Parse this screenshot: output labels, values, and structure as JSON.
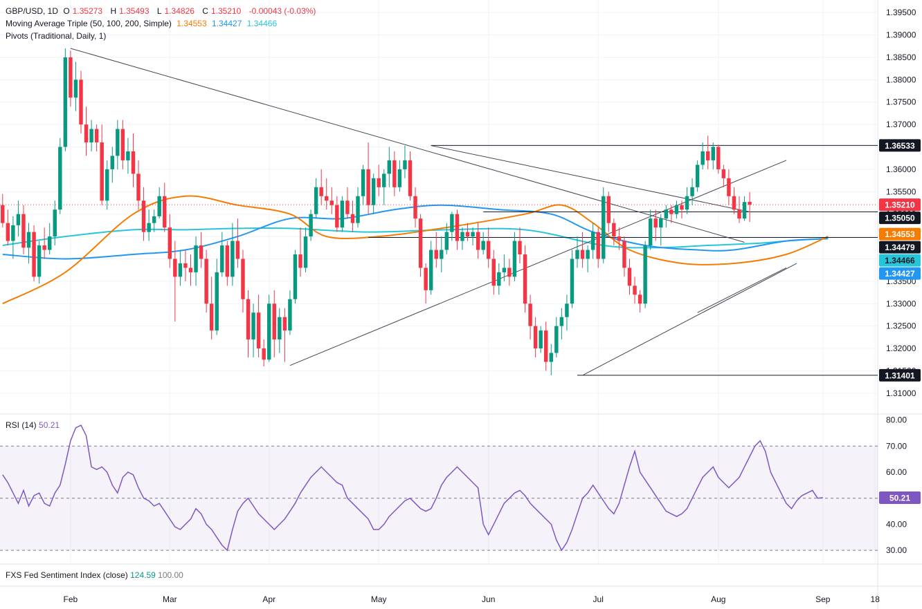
{
  "header": {
    "symbol": "GBP/USD, 1D",
    "o_label": "O",
    "o": "1.35273",
    "h_label": "H",
    "h": "1.35493",
    "l_label": "L",
    "l": "1.34826",
    "c_label": "C",
    "c": "1.35210",
    "change": "-0.00043 (-0.03%)",
    "ma_title": "Moving Average Triple (50, 100, 200, Simple)",
    "ma50": "1.34553",
    "ma100": "1.34427",
    "ma200": "1.34466",
    "pivots_title": "Pivots (Traditional, Daily, 1)"
  },
  "rsi_legend": {
    "name": "RSI (14)",
    "value": "50.21"
  },
  "fxs_legend": {
    "name": "FXS Fed Sentiment Index (close)",
    "value": "124.59",
    "value2": "100.00"
  },
  "colors": {
    "up": "#089981",
    "down": "#f23645",
    "ma50": "#f57c00",
    "ma100": "#2196f3",
    "ma200": "#26c6da",
    "rsi": "#7e57c2",
    "trend": "#434651",
    "level": "#131722"
  },
  "chart_data": {
    "type": "candlestick",
    "price_axis": {
      "range": [
        1.3055,
        1.3978
      ],
      "ticks": [
        "1.39500",
        "1.39000",
        "1.38500",
        "1.38000",
        "1.37500",
        "1.37000",
        "1.36500",
        "1.36000",
        "1.35500",
        "1.35000",
        "1.34500",
        "1.34000",
        "1.33500",
        "1.33000",
        "1.32500",
        "1.32000",
        "1.31500",
        "1.31000"
      ]
    },
    "rsi_axis": {
      "range": [
        25,
        82
      ],
      "ticks": [
        "80.00",
        "70.00",
        "60.00",
        "50.00",
        "40.00",
        "30.00"
      ],
      "band": [
        30,
        70
      ],
      "mid": 50
    },
    "time_axis": {
      "labels": [
        "Feb",
        "Mar",
        "Apr",
        "May",
        "Jun",
        "Jul",
        "Aug",
        "Sep",
        "18"
      ],
      "label_index": [
        13,
        32,
        51,
        72,
        93,
        114,
        137,
        157,
        167
      ],
      "n_slots": 168
    },
    "current_price": 1.3521,
    "badges": [
      {
        "text": "1.36533",
        "value": 1.36533,
        "kind": "level"
      },
      {
        "text": "1.35210",
        "value": 1.3521,
        "kind": "price"
      },
      {
        "text": "1.35050",
        "value": 1.3505,
        "kind": "level"
      },
      {
        "text": "1.34553",
        "value": 1.34553,
        "kind": "ma50"
      },
      {
        "text": "1.34479",
        "value": 1.34479,
        "kind": "level"
      },
      {
        "text": "1.34466",
        "value": 1.34466,
        "kind": "ma200"
      },
      {
        "text": "1.34427",
        "value": 1.34427,
        "kind": "ma100"
      },
      {
        "text": "1.31401",
        "value": 1.31401,
        "kind": "level"
      }
    ],
    "levels": [
      {
        "value": 1.36533,
        "from": 82,
        "to": 168
      },
      {
        "value": 1.3505,
        "from": 92,
        "to": 168
      },
      {
        "value": 1.34479,
        "from": 70,
        "to": 168
      },
      {
        "value": 1.31401,
        "from": 110,
        "to": 168
      }
    ],
    "trendlines": [
      {
        "x1": 13,
        "y1": 1.387,
        "x2": 142,
        "y2": 1.3437
      },
      {
        "x1": 82,
        "y1": 1.3653,
        "x2": 143,
        "y2": 1.3505
      },
      {
        "x1": 55,
        "y1": 1.3162,
        "x2": 150,
        "y2": 1.362
      },
      {
        "x1": 111,
        "y1": 1.314,
        "x2": 152,
        "y2": 1.339
      },
      {
        "x1": 133,
        "y1": 1.328,
        "x2": 150,
        "y2": 1.338
      }
    ],
    "ma50": [
      [
        0,
        1.33
      ],
      [
        12,
        1.337
      ],
      [
        25,
        1.35
      ],
      [
        35,
        1.354
      ],
      [
        45,
        1.352
      ],
      [
        55,
        1.35
      ],
      [
        62,
        1.345
      ],
      [
        72,
        1.345
      ],
      [
        85,
        1.347
      ],
      [
        100,
        1.35
      ],
      [
        107,
        1.352
      ],
      [
        113,
        1.348
      ],
      [
        120,
        1.342
      ],
      [
        130,
        1.339
      ],
      [
        140,
        1.339
      ],
      [
        150,
        1.341
      ],
      [
        158,
        1.345
      ]
    ],
    "ma100": [
      [
        0,
        1.341
      ],
      [
        12,
        1.34
      ],
      [
        25,
        1.341
      ],
      [
        35,
        1.342
      ],
      [
        45,
        1.345
      ],
      [
        55,
        1.349
      ],
      [
        65,
        1.349
      ],
      [
        75,
        1.351
      ],
      [
        84,
        1.352
      ],
      [
        95,
        1.351
      ],
      [
        105,
        1.35
      ],
      [
        113,
        1.346
      ],
      [
        123,
        1.343
      ],
      [
        133,
        1.342
      ],
      [
        140,
        1.342
      ],
      [
        150,
        1.344
      ],
      [
        158,
        1.3445
      ]
    ],
    "ma200": [
      [
        0,
        1.343
      ],
      [
        12,
        1.345
      ],
      [
        25,
        1.3465
      ],
      [
        35,
        1.3465
      ],
      [
        45,
        1.3468
      ],
      [
        55,
        1.3468
      ],
      [
        70,
        1.346
      ],
      [
        85,
        1.3465
      ],
      [
        100,
        1.3465
      ],
      [
        115,
        1.343
      ],
      [
        125,
        1.3425
      ],
      [
        135,
        1.343
      ],
      [
        145,
        1.3435
      ],
      [
        150,
        1.344
      ],
      [
        158,
        1.3446
      ]
    ],
    "rsi": [
      59,
      56,
      52,
      48,
      53,
      47,
      51,
      52,
      48,
      47,
      52,
      55,
      63,
      72,
      77,
      78,
      74,
      62,
      61,
      62,
      60,
      55,
      52,
      58,
      60,
      59,
      54,
      50,
      49,
      47,
      48,
      45,
      42,
      39,
      38,
      40,
      42,
      46,
      44,
      40,
      38,
      35,
      32,
      30,
      38,
      45,
      48,
      50,
      47,
      44,
      42,
      40,
      38,
      40,
      42,
      45,
      48,
      52,
      55,
      58,
      60,
      62,
      60,
      58,
      56,
      55,
      50,
      48,
      46,
      44,
      42,
      38,
      38,
      40,
      43,
      45,
      47,
      49,
      50,
      48,
      46,
      45,
      46,
      50,
      55,
      58,
      60,
      62,
      60,
      58,
      56,
      54,
      40,
      36,
      40,
      44,
      48,
      50,
      52,
      53,
      51,
      48,
      46,
      44,
      42,
      40,
      34,
      30,
      33,
      38,
      44,
      50,
      52,
      55,
      52,
      49,
      46,
      44,
      48,
      55,
      62,
      68,
      60,
      57,
      54,
      51,
      48,
      45,
      44,
      43,
      44,
      46,
      50,
      54,
      58,
      60,
      62,
      58,
      56,
      54,
      56,
      58,
      62,
      66,
      70,
      72,
      68,
      60,
      56,
      52,
      48,
      46,
      49,
      51,
      52,
      53,
      50,
      50.2
    ],
    "candles": [
      [
        1.352,
        1.3545,
        1.347,
        1.348
      ],
      [
        1.348,
        1.351,
        1.343,
        1.344
      ],
      [
        1.344,
        1.3495,
        1.34,
        1.3475
      ],
      [
        1.3475,
        1.353,
        1.345,
        1.35
      ],
      [
        1.35,
        1.352,
        1.341,
        1.3425
      ],
      [
        1.3425,
        1.348,
        1.339,
        1.346
      ],
      [
        1.346,
        1.3475,
        1.335,
        1.336
      ],
      [
        1.336,
        1.344,
        1.3345,
        1.343
      ],
      [
        1.343,
        1.347,
        1.34,
        1.342
      ],
      [
        1.342,
        1.348,
        1.341,
        1.345
      ],
      [
        1.345,
        1.353,
        1.343,
        1.351
      ],
      [
        1.351,
        1.367,
        1.35,
        1.365
      ],
      [
        1.365,
        1.387,
        1.364,
        1.385
      ],
      [
        1.385,
        1.3865,
        1.374,
        1.376
      ],
      [
        1.376,
        1.384,
        1.373,
        1.38
      ],
      [
        1.38,
        1.382,
        1.368,
        1.37
      ],
      [
        1.37,
        1.374,
        1.363,
        1.366
      ],
      [
        1.366,
        1.371,
        1.364,
        1.369
      ],
      [
        1.369,
        1.37,
        1.364,
        1.366
      ],
      [
        1.366,
        1.37,
        1.352,
        1.353
      ],
      [
        1.353,
        1.362,
        1.351,
        1.36
      ],
      [
        1.36,
        1.365,
        1.357,
        1.363
      ],
      [
        1.363,
        1.371,
        1.36,
        1.369
      ],
      [
        1.369,
        1.371,
        1.36,
        1.362
      ],
      [
        1.362,
        1.367,
        1.359,
        1.364
      ],
      [
        1.364,
        1.368,
        1.356,
        1.359
      ],
      [
        1.359,
        1.362,
        1.351,
        1.353
      ],
      [
        1.353,
        1.356,
        1.344,
        1.346
      ],
      [
        1.346,
        1.351,
        1.344,
        1.348
      ],
      [
        1.348,
        1.351,
        1.346,
        1.3495
      ],
      [
        1.3495,
        1.356,
        1.349,
        1.354
      ],
      [
        1.354,
        1.357,
        1.346,
        1.347
      ],
      [
        1.347,
        1.35,
        1.338,
        1.34
      ],
      [
        1.34,
        1.344,
        1.326,
        1.336
      ],
      [
        1.336,
        1.342,
        1.334,
        1.339
      ],
      [
        1.339,
        1.342,
        1.335,
        1.338
      ],
      [
        1.338,
        1.341,
        1.334,
        1.337
      ],
      [
        1.337,
        1.345,
        1.334,
        1.343
      ],
      [
        1.343,
        1.346,
        1.338,
        1.34
      ],
      [
        1.34,
        1.342,
        1.328,
        1.33
      ],
      [
        1.33,
        1.336,
        1.322,
        1.324
      ],
      [
        1.324,
        1.34,
        1.323,
        1.337
      ],
      [
        1.337,
        1.346,
        1.336,
        1.343
      ],
      [
        1.343,
        1.344,
        1.334,
        1.336
      ],
      [
        1.336,
        1.348,
        1.334,
        1.344
      ],
      [
        1.344,
        1.349,
        1.338,
        1.34
      ],
      [
        1.34,
        1.342,
        1.328,
        1.331
      ],
      [
        1.331,
        1.333,
        1.318,
        1.322
      ],
      [
        1.322,
        1.33,
        1.318,
        1.328
      ],
      [
        1.328,
        1.332,
        1.318,
        1.32
      ],
      [
        1.32,
        1.322,
        1.316,
        1.3175
      ],
      [
        1.3175,
        1.332,
        1.317,
        1.33
      ],
      [
        1.33,
        1.333,
        1.318,
        1.322
      ],
      [
        1.322,
        1.329,
        1.319,
        1.327
      ],
      [
        1.327,
        1.329,
        1.317,
        1.324
      ],
      [
        1.324,
        1.333,
        1.323,
        1.331
      ],
      [
        1.331,
        1.342,
        1.33,
        1.341
      ],
      [
        1.341,
        1.347,
        1.336,
        1.338
      ],
      [
        1.338,
        1.347,
        1.337,
        1.345
      ],
      [
        1.345,
        1.351,
        1.344,
        1.35
      ],
      [
        1.35,
        1.358,
        1.349,
        1.356
      ],
      [
        1.356,
        1.36,
        1.352,
        1.354
      ],
      [
        1.354,
        1.358,
        1.351,
        1.353
      ],
      [
        1.353,
        1.356,
        1.35,
        1.352
      ],
      [
        1.352,
        1.354,
        1.346,
        1.347
      ],
      [
        1.347,
        1.354,
        1.346,
        1.353
      ],
      [
        1.353,
        1.356,
        1.349,
        1.35
      ],
      [
        1.35,
        1.353,
        1.346,
        1.348
      ],
      [
        1.348,
        1.356,
        1.347,
        1.354
      ],
      [
        1.354,
        1.361,
        1.352,
        1.36
      ],
      [
        1.36,
        1.366,
        1.35,
        1.352
      ],
      [
        1.352,
        1.359,
        1.35,
        1.358
      ],
      [
        1.358,
        1.361,
        1.354,
        1.356
      ],
      [
        1.356,
        1.36,
        1.352,
        1.359
      ],
      [
        1.359,
        1.365,
        1.356,
        1.362
      ],
      [
        1.362,
        1.364,
        1.354,
        1.356
      ],
      [
        1.356,
        1.362,
        1.355,
        1.36
      ],
      [
        1.36,
        1.3653,
        1.358,
        1.362
      ],
      [
        1.362,
        1.364,
        1.353,
        1.354
      ],
      [
        1.354,
        1.356,
        1.347,
        1.349
      ],
      [
        1.349,
        1.35,
        1.336,
        1.338
      ],
      [
        1.338,
        1.339,
        1.33,
        1.333
      ],
      [
        1.333,
        1.344,
        1.332,
        1.342
      ],
      [
        1.342,
        1.346,
        1.338,
        1.34
      ],
      [
        1.34,
        1.345,
        1.337,
        1.342
      ],
      [
        1.342,
        1.348,
        1.341,
        1.346
      ],
      [
        1.346,
        1.3505,
        1.344,
        1.35
      ],
      [
        1.35,
        1.351,
        1.342,
        1.344
      ],
      [
        1.344,
        1.347,
        1.342,
        1.346
      ],
      [
        1.346,
        1.348,
        1.344,
        1.345
      ],
      [
        1.345,
        1.347,
        1.343,
        1.346
      ],
      [
        1.346,
        1.348,
        1.34,
        1.342
      ],
      [
        1.342,
        1.346,
        1.341,
        1.344
      ],
      [
        1.344,
        1.347,
        1.338,
        1.34
      ],
      [
        1.34,
        1.342,
        1.332,
        1.334
      ],
      [
        1.334,
        1.339,
        1.332,
        1.337
      ],
      [
        1.337,
        1.341,
        1.335,
        1.338
      ],
      [
        1.338,
        1.34,
        1.334,
        1.336
      ],
      [
        1.336,
        1.346,
        1.335,
        1.344
      ],
      [
        1.344,
        1.347,
        1.339,
        1.341
      ],
      [
        1.341,
        1.343,
        1.328,
        1.33
      ],
      [
        1.33,
        1.332,
        1.322,
        1.325
      ],
      [
        1.325,
        1.327,
        1.318,
        1.32
      ],
      [
        1.32,
        1.325,
        1.319,
        1.324
      ],
      [
        1.324,
        1.326,
        1.315,
        1.317
      ],
      [
        1.317,
        1.321,
        1.314,
        1.319
      ],
      [
        1.319,
        1.327,
        1.318,
        1.325
      ],
      [
        1.325,
        1.329,
        1.322,
        1.327
      ],
      [
        1.327,
        1.332,
        1.324,
        1.33
      ],
      [
        1.33,
        1.342,
        1.329,
        1.34
      ],
      [
        1.34,
        1.345,
        1.338,
        1.342
      ],
      [
        1.342,
        1.346,
        1.338,
        1.34
      ],
      [
        1.34,
        1.343,
        1.337,
        1.342
      ],
      [
        1.342,
        1.348,
        1.34,
        1.346
      ],
      [
        1.346,
        1.347,
        1.338,
        1.34
      ],
      [
        1.34,
        1.356,
        1.339,
        1.354
      ],
      [
        1.354,
        1.355,
        1.346,
        1.348
      ],
      [
        1.348,
        1.349,
        1.343,
        1.345
      ],
      [
        1.345,
        1.347,
        1.342,
        1.344
      ],
      [
        1.344,
        1.345,
        1.336,
        1.338
      ],
      [
        1.338,
        1.34,
        1.332,
        1.334
      ],
      [
        1.334,
        1.336,
        1.33,
        1.332
      ],
      [
        1.332,
        1.333,
        1.328,
        1.33
      ],
      [
        1.33,
        1.344,
        1.329,
        1.343
      ],
      [
        1.343,
        1.351,
        1.342,
        1.349
      ],
      [
        1.349,
        1.351,
        1.344,
        1.347
      ],
      [
        1.347,
        1.35,
        1.343,
        1.349
      ],
      [
        1.349,
        1.352,
        1.347,
        1.351
      ],
      [
        1.351,
        1.352,
        1.348,
        1.35
      ],
      [
        1.35,
        1.353,
        1.349,
        1.352
      ],
      [
        1.352,
        1.353,
        1.349,
        1.351
      ],
      [
        1.351,
        1.356,
        1.35,
        1.354
      ],
      [
        1.354,
        1.358,
        1.352,
        1.356
      ],
      [
        1.356,
        1.362,
        1.355,
        1.361
      ],
      [
        1.361,
        1.366,
        1.36,
        1.364
      ],
      [
        1.364,
        1.3675,
        1.36,
        1.362
      ],
      [
        1.362,
        1.366,
        1.36,
        1.365
      ],
      [
        1.365,
        1.3655,
        1.359,
        1.36
      ],
      [
        1.36,
        1.361,
        1.356,
        1.358
      ],
      [
        1.358,
        1.36,
        1.352,
        1.354
      ],
      [
        1.354,
        1.356,
        1.35,
        1.351
      ],
      [
        1.351,
        1.354,
        1.348,
        1.349
      ],
      [
        1.349,
        1.354,
        1.3485,
        1.3527
      ],
      [
        1.35273,
        1.35493,
        1.34826,
        1.3521
      ]
    ]
  }
}
